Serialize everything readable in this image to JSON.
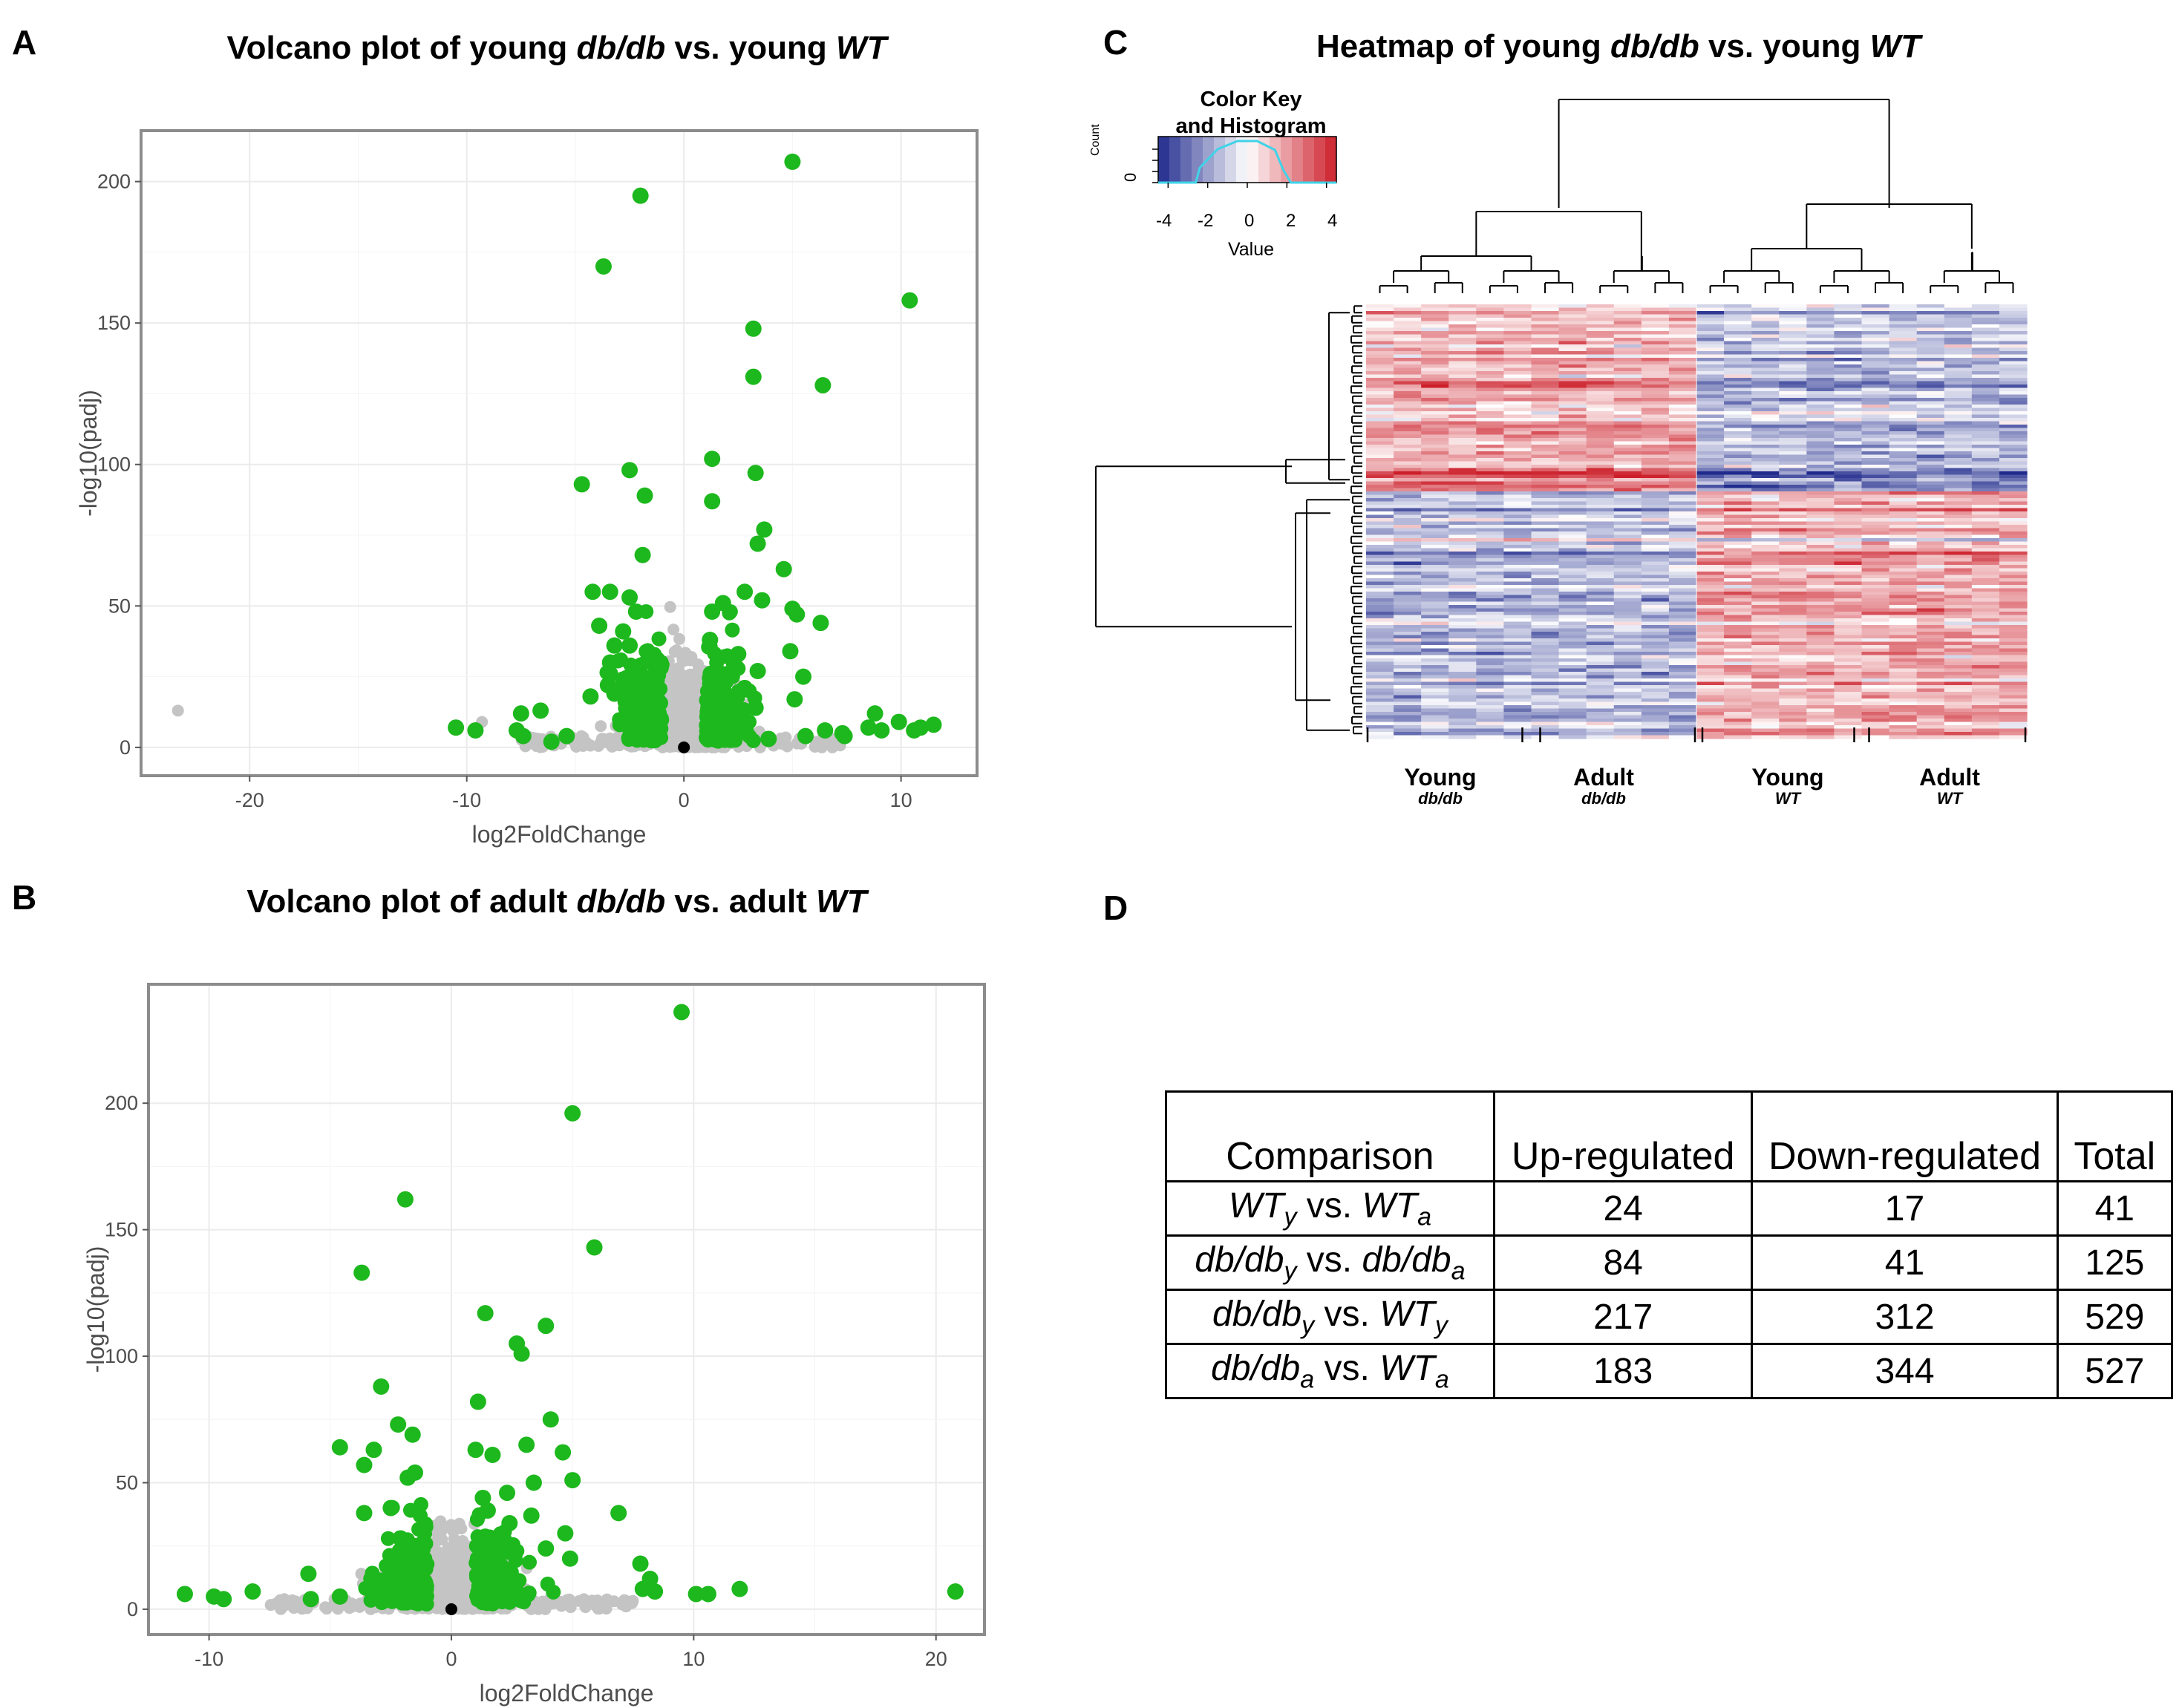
{
  "panels": {
    "a": {
      "label": "A",
      "title_pre": "Volcano plot of young ",
      "title_it1": "db/db",
      "title_mid": " vs. young ",
      "title_it2": "WT"
    },
    "b": {
      "label": "B",
      "title_pre": "Volcano plot of adult ",
      "title_it1": "db/db",
      "title_mid": " vs. adult ",
      "title_it2": "WT"
    },
    "c": {
      "label": "C",
      "title_pre": "Heatmap of young ",
      "title_it1": "db/db",
      "title_mid": " vs. young ",
      "title_it2": "WT"
    },
    "d": {
      "label": "D"
    }
  },
  "colors": {
    "sig": "#1db81d",
    "nonsig": "#c4c4c4",
    "zero": "#000000",
    "high": "#cc1f2a",
    "low": "#1f2a8c",
    "mid": "#ffffff",
    "hist": "#3fd3e8"
  },
  "chart_data": [
    {
      "type": "scatter",
      "title": "Volcano plot of young db/db vs. young WT",
      "xlabel": "log2FoldChange",
      "ylabel": "-log10(padj)",
      "xlim": [
        -25,
        13.5
      ],
      "ylim": [
        -10,
        218
      ],
      "xticks": [
        -20,
        -10,
        0,
        10
      ],
      "yticks": [
        0,
        50,
        100,
        150,
        200
      ],
      "significant": [
        [
          5,
          207
        ],
        [
          -2,
          195
        ],
        [
          -3.7,
          170
        ],
        [
          10.4,
          158
        ],
        [
          3.2,
          148
        ],
        [
          3.2,
          131
        ],
        [
          6.4,
          128
        ],
        [
          1.3,
          102
        ],
        [
          -2.5,
          98
        ],
        [
          3.3,
          97
        ],
        [
          -4.7,
          93
        ],
        [
          -1.8,
          89
        ],
        [
          1.3,
          87
        ],
        [
          3.7,
          77
        ],
        [
          3.4,
          72
        ],
        [
          -1.9,
          68
        ],
        [
          4.6,
          63
        ],
        [
          -4.2,
          55
        ],
        [
          -3.4,
          55
        ],
        [
          -2.5,
          53
        ],
        [
          2.8,
          55
        ],
        [
          -2.2,
          48
        ],
        [
          3.6,
          52
        ],
        [
          1.8,
          51
        ],
        [
          5,
          49
        ],
        [
          1.3,
          48
        ],
        [
          5.2,
          47
        ],
        [
          6.3,
          44
        ],
        [
          -3.9,
          43
        ],
        [
          -2.8,
          41
        ],
        [
          -3.2,
          36
        ],
        [
          1.2,
          38
        ],
        [
          -2.5,
          36
        ],
        [
          2.5,
          33
        ],
        [
          4.9,
          34
        ],
        [
          -3.4,
          30
        ],
        [
          2.3,
          30
        ],
        [
          3.4,
          27
        ],
        [
          -3.4,
          26
        ],
        [
          -2.8,
          24
        ],
        [
          5.5,
          25
        ],
        [
          -3.5,
          22
        ],
        [
          2.8,
          21
        ],
        [
          -3.2,
          19
        ],
        [
          -4.3,
          18
        ],
        [
          5.1,
          17
        ],
        [
          -6.6,
          13
        ],
        [
          -7.5,
          12
        ],
        [
          2.7,
          13
        ],
        [
          3.3,
          14
        ],
        [
          8.8,
          12
        ],
        [
          9.9,
          9
        ],
        [
          -10.5,
          7
        ],
        [
          -9.6,
          6
        ],
        [
          -7.7,
          6
        ],
        [
          -7.4,
          4
        ],
        [
          -6.1,
          2
        ],
        [
          7.3,
          5
        ],
        [
          7.4,
          4
        ],
        [
          8.5,
          7
        ],
        [
          9.1,
          6
        ],
        [
          10.6,
          6
        ],
        [
          10.9,
          7
        ],
        [
          11.5,
          8
        ],
        [
          5.6,
          4
        ],
        [
          3.9,
          3
        ],
        [
          -5.4,
          4
        ],
        [
          6.5,
          6
        ]
      ],
      "nonsignificant": [
        [
          -23.3,
          13
        ],
        [
          -9.3,
          9
        ]
      ],
      "zero": [
        [
          0,
          0
        ]
      ]
    },
    {
      "type": "scatter",
      "title": "Volcano plot of adult db/db vs. adult WT",
      "xlabel": "log2FoldChange",
      "ylabel": "-log10(padj)",
      "xlim": [
        -12.5,
        22
      ],
      "ylim": [
        -10,
        247
      ],
      "xticks": [
        -10,
        0,
        10,
        20
      ],
      "yticks": [
        0,
        50,
        100,
        150,
        200
      ],
      "significant": [
        [
          9.5,
          236
        ],
        [
          5,
          196
        ],
        [
          -1.9,
          162
        ],
        [
          5.9,
          143
        ],
        [
          -3.7,
          133
        ],
        [
          1.4,
          117
        ],
        [
          3.9,
          112
        ],
        [
          2.7,
          105
        ],
        [
          2.9,
          101
        ],
        [
          1.1,
          82
        ],
        [
          -2.9,
          88
        ],
        [
          4.1,
          75
        ],
        [
          -2.2,
          73
        ],
        [
          -1.6,
          69
        ],
        [
          1,
          63
        ],
        [
          3.1,
          65
        ],
        [
          -4.6,
          64
        ],
        [
          -3.2,
          63
        ],
        [
          1.7,
          61
        ],
        [
          4.6,
          62
        ],
        [
          -3.6,
          57
        ],
        [
          -1.5,
          54
        ],
        [
          5,
          51
        ],
        [
          -1.8,
          52
        ],
        [
          3.4,
          50
        ],
        [
          1.3,
          44
        ],
        [
          2.3,
          46
        ],
        [
          6.9,
          38
        ],
        [
          -2.5,
          40
        ],
        [
          1.5,
          39
        ],
        [
          -3.6,
          38
        ],
        [
          3.3,
          37
        ],
        [
          2.4,
          34
        ],
        [
          4.7,
          30
        ],
        [
          -2.1,
          28
        ],
        [
          3.9,
          24
        ],
        [
          4.9,
          20
        ],
        [
          7.8,
          18
        ],
        [
          1.6,
          25
        ],
        [
          8.2,
          12
        ],
        [
          7.9,
          8
        ],
        [
          8.4,
          7
        ],
        [
          -11,
          6
        ],
        [
          -9.8,
          5
        ],
        [
          -9.4,
          4
        ],
        [
          -8.2,
          7
        ],
        [
          10.1,
          6
        ],
        [
          10.6,
          6
        ],
        [
          11.9,
          8
        ],
        [
          20.8,
          7
        ],
        [
          -5.8,
          4
        ],
        [
          -4.6,
          5
        ],
        [
          -5.9,
          14
        ],
        [
          -3.3,
          12
        ]
      ],
      "nonsignificant": [
        [
          -6.6,
          3
        ],
        [
          -6.9,
          4
        ]
      ],
      "zero": [
        [
          0,
          0
        ]
      ]
    },
    {
      "type": "heatmap",
      "title": "Heatmap of young db/db vs. young WT",
      "color_key_title": "Color Key",
      "color_key_subtitle": "and Histogram",
      "color_key_ylabel": "Count",
      "color_key_yzero": "0",
      "color_key_xlabel": "Value",
      "color_key_ticks": [
        "-4",
        "-2",
        "0",
        "2",
        "4"
      ],
      "groups": [
        {
          "name": "Young",
          "sub": "db/db"
        },
        {
          "name": "Adult",
          "sub": "db/db"
        },
        {
          "name": "Young",
          "sub": "WT"
        },
        {
          "name": "Adult",
          "sub": "WT"
        }
      ]
    },
    {
      "type": "table",
      "headers": [
        "Comparison",
        "Up-regulated",
        "Down-regulated",
        "Total"
      ],
      "rows": [
        {
          "a": "WT",
          "as": "y",
          "vs": "vs.",
          "b": "WT",
          "bs": "a",
          "up": "24",
          "down": "17",
          "total": "41"
        },
        {
          "a": "db/db",
          "as": "y",
          "vs": "vs.",
          "b": "db/db",
          "bs": "a",
          "up": "84",
          "down": "41",
          "total": "125"
        },
        {
          "a": "db/db",
          "as": "y",
          "vs": "vs.",
          "b": "WT",
          "bs": "y",
          "up": "217",
          "down": "312",
          "total": "529"
        },
        {
          "a": "db/db",
          "as": "a",
          "vs": "vs.",
          "b": "WT",
          "bs": "a",
          "up": "183",
          "down": "344",
          "total": "527"
        }
      ]
    }
  ]
}
